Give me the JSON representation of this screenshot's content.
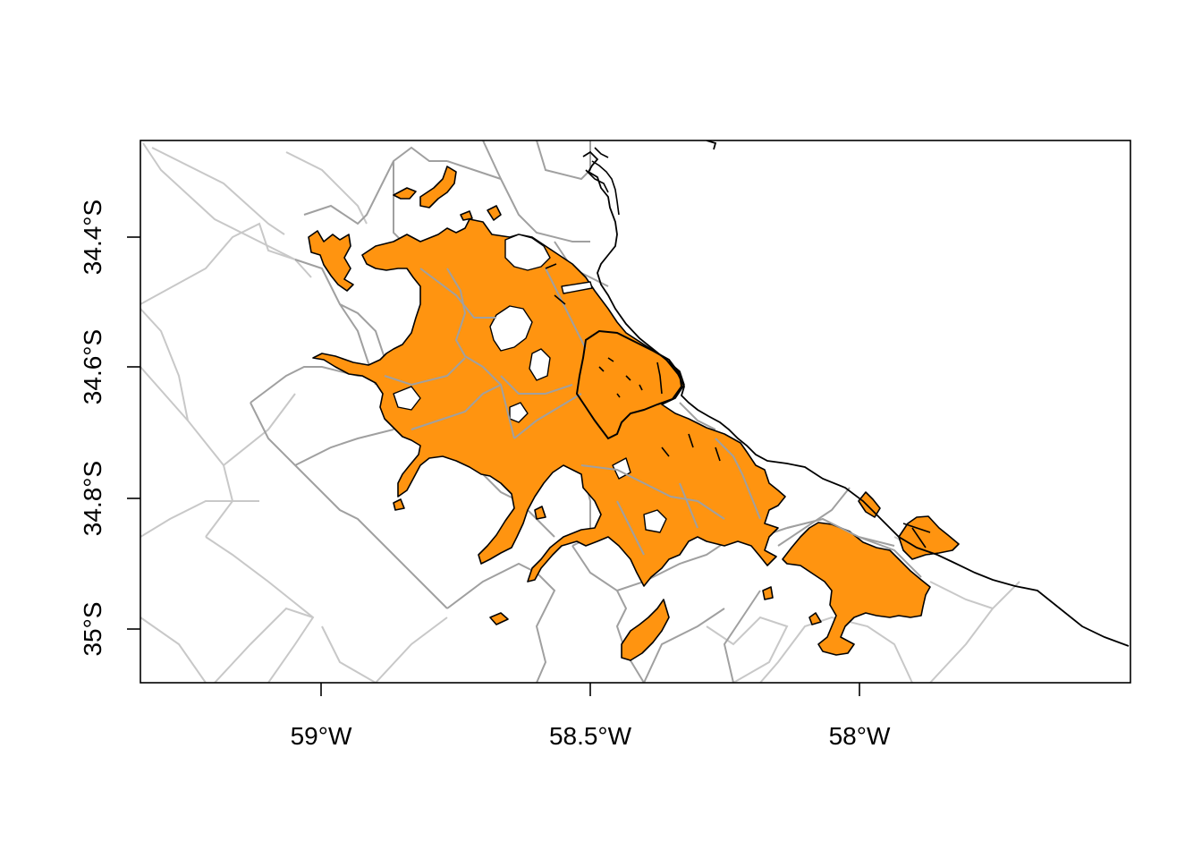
{
  "map": {
    "type": "choropleth-outline",
    "fill_color": "#FF9410",
    "outline_color": "#000000",
    "district_border_color": "#A0A0A0",
    "outer_border_color": "#C8C8C8",
    "coast_color": "#000000",
    "x_axis": {
      "ticks": [
        {
          "value": -59.0,
          "label": "59°W"
        },
        {
          "value": -58.5,
          "label": "58.5°W"
        },
        {
          "value": -58.0,
          "label": "58°W"
        }
      ]
    },
    "y_axis": {
      "ticks": [
        {
          "value": -34.4,
          "label": "34.4°S"
        },
        {
          "value": -34.6,
          "label": "34.6°S"
        },
        {
          "value": -34.8,
          "label": "34.8°S"
        },
        {
          "value": -35.0,
          "label": "35°S"
        }
      ]
    },
    "lon_range": [
      -59.34,
      -57.5
    ],
    "lat_range": [
      -35.08,
      -34.255
    ]
  }
}
